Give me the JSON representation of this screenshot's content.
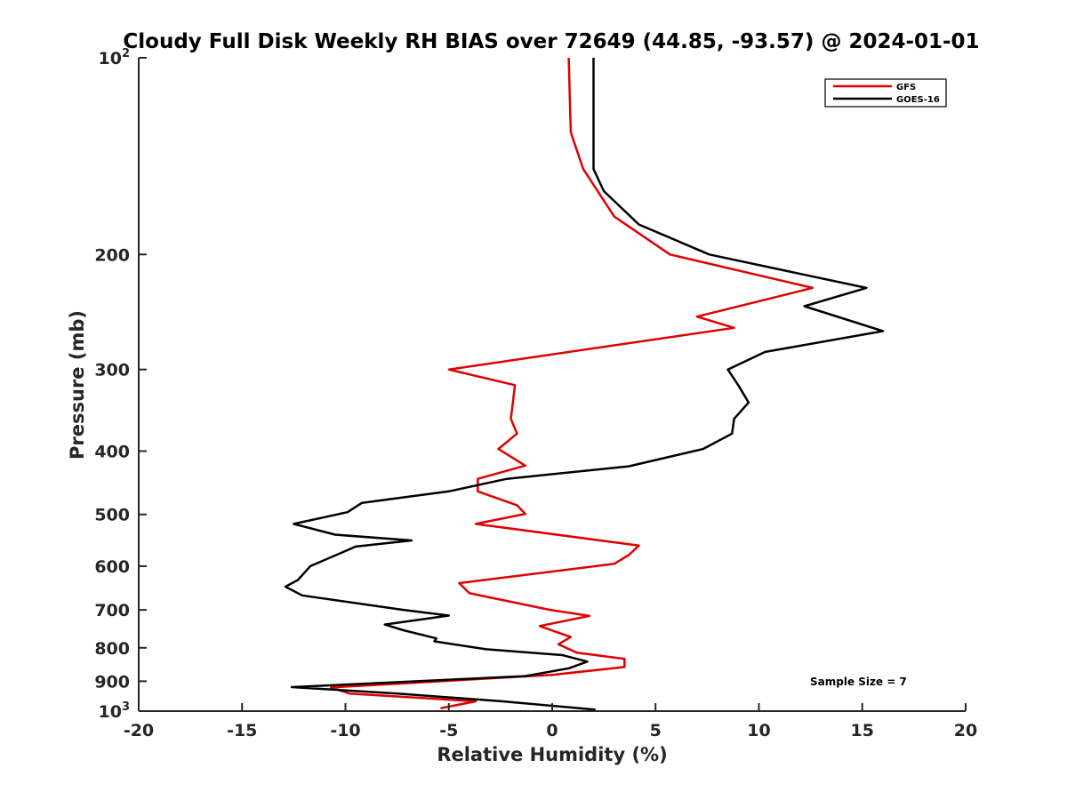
{
  "chart_data": {
    "type": "line",
    "title": "Cloudy Full Disk Weekly RH BIAS over 72649 (44.85, -93.57) @ 2024-01-01",
    "xlabel": "Relative Humidity (%)",
    "ylabel": "Pressure (mb)",
    "xlim": [
      -20,
      20
    ],
    "ylim": [
      1000,
      100
    ],
    "y_scale": "log",
    "grid": false,
    "legend_position": "top-right",
    "x_ticks": [
      -20,
      -15,
      -10,
      -5,
      0,
      5,
      10,
      15,
      20
    ],
    "x_tick_labels": [
      "-20",
      "-15",
      "-10",
      "-5",
      "0",
      "5",
      "10",
      "15",
      "20"
    ],
    "y_ticks": [
      {
        "value": 100,
        "base": "10",
        "exp": "2"
      },
      {
        "value": 200,
        "label": "200"
      },
      {
        "value": 300,
        "label": "300"
      },
      {
        "value": 400,
        "label": "400"
      },
      {
        "value": 500,
        "label": "500"
      },
      {
        "value": 600,
        "label": "600"
      },
      {
        "value": 700,
        "label": "700"
      },
      {
        "value": 800,
        "label": "800"
      },
      {
        "value": 900,
        "label": "900"
      },
      {
        "value": 1000,
        "base": "10",
        "exp": "3"
      }
    ],
    "annotation": "Sample Size = 7",
    "series": [
      {
        "name": "GFS",
        "color": "#e00000",
        "x": [
          0.8,
          0.9,
          1.5,
          3.0,
          5.7,
          12.6,
          7.0,
          8.8,
          -5.0,
          -1.8,
          -1.9,
          -2.0,
          -1.7,
          -2.6,
          -1.3,
          -3.6,
          -3.6,
          -1.7,
          -1.3,
          -3.7,
          4.2,
          3.7,
          3.0,
          -4.5,
          -4.0,
          -0.1,
          1.8,
          -0.6,
          0.9,
          0.3,
          1.2,
          3.5,
          3.5,
          0.0,
          -10.7,
          -9.8,
          -3.7,
          -5.4
        ],
        "y": [
          100,
          130,
          148,
          175,
          200,
          225,
          249,
          259,
          300,
          317,
          337,
          357,
          376,
          397,
          421,
          441,
          461,
          484,
          499,
          517,
          558,
          577,
          595,
          637,
          660,
          700,
          715,
          741,
          770,
          790,
          814,
          832,
          856,
          880,
          920,
          940,
          966,
          990
        ]
      },
      {
        "name": "GOES-16",
        "color": "#000000",
        "x": [
          2.0,
          2.0,
          2.0,
          2.5,
          4.2,
          7.6,
          15.2,
          12.2,
          16.0,
          10.3,
          8.5,
          9.0,
          9.5,
          8.8,
          8.7,
          7.3,
          3.7,
          -2.2,
          -5.0,
          -9.2,
          -9.9,
          -12.5,
          -10.5,
          -6.8,
          -9.5,
          -11.7,
          -12.3,
          -12.9,
          -12.1,
          -7.2,
          -5.0,
          -8.1,
          -7.2,
          -5.6,
          -5.7,
          -3.2,
          0.5,
          1.7,
          0.8,
          -1.3,
          -12.6,
          -7.5,
          -2.4,
          2.1
        ],
        "y": [
          100,
          130,
          148,
          160,
          180,
          200,
          225,
          240,
          262,
          282,
          300,
          317,
          337,
          357,
          376,
          397,
          422,
          441,
          461,
          480,
          496,
          517,
          537,
          548,
          560,
          600,
          630,
          645,
          665,
          700,
          714,
          737,
          752,
          774,
          782,
          804,
          821,
          840,
          860,
          884,
          919,
          940,
          966,
          995
        ]
      }
    ]
  }
}
